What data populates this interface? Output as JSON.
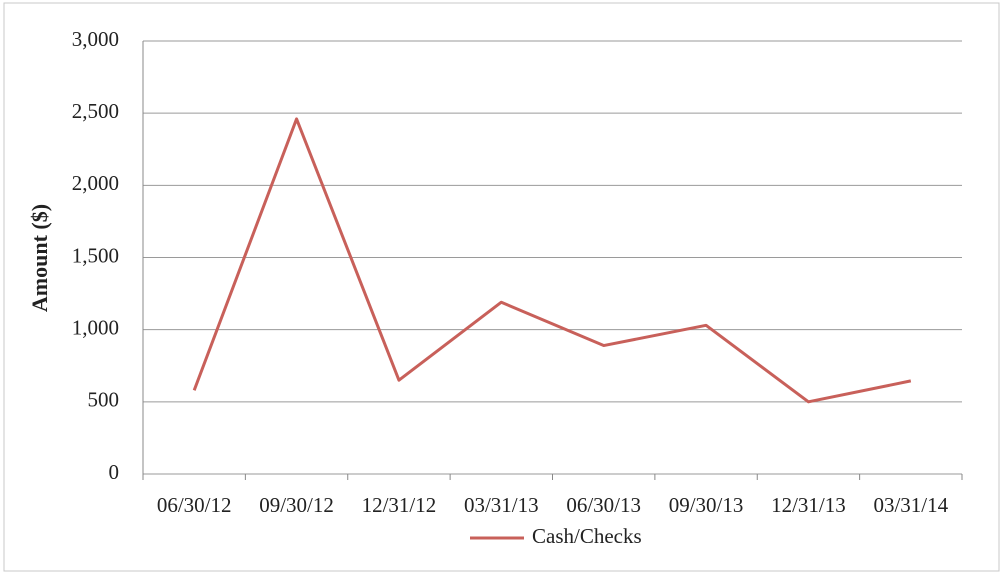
{
  "chart_data": {
    "type": "line",
    "y_label": "Amount ($)",
    "categories": [
      "06/30/12",
      "09/30/12",
      "12/31/12",
      "03/31/13",
      "06/30/13",
      "09/30/13",
      "12/31/13",
      "03/31/14"
    ],
    "series": [
      {
        "name": "Cash/Checks",
        "color": "#c8605a",
        "values": [
          580,
          2460,
          650,
          1190,
          890,
          1030,
          500,
          645
        ]
      }
    ],
    "ylim": [
      0,
      3000
    ],
    "yticks": [
      0,
      500,
      {
        "value": 1000,
        "label": "1,000"
      },
      {
        "value": 1500,
        "label": "1,500"
      },
      {
        "value": 2000,
        "label": "2,000"
      },
      {
        "value": 2500,
        "label": "2,500"
      },
      {
        "value": 3000,
        "label": "3,000"
      }
    ],
    "grid": true,
    "legend": "bottom"
  }
}
